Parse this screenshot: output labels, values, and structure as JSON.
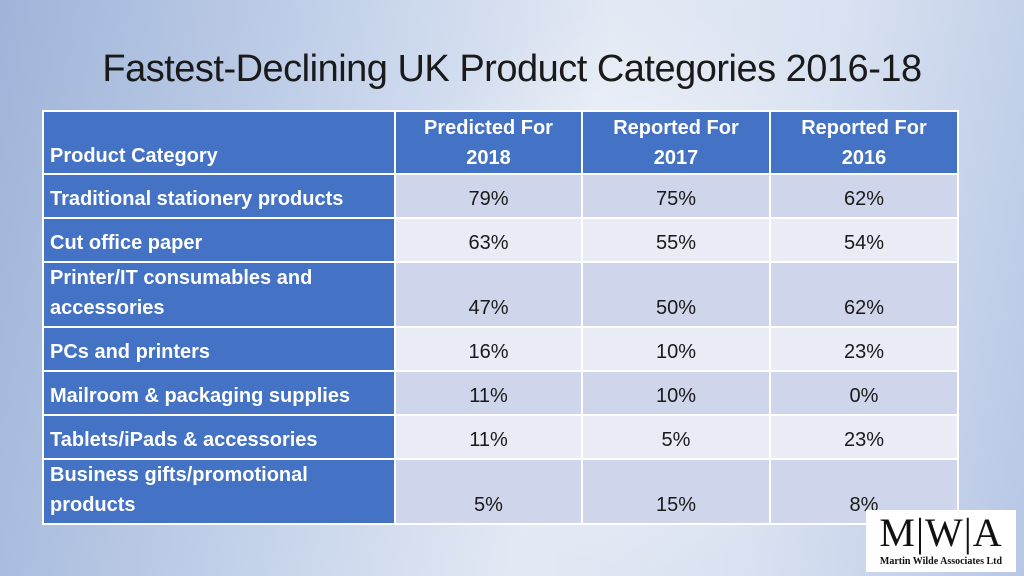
{
  "title": "Fastest-Declining UK Product Categories 2016-18",
  "table": {
    "headers": [
      "Product Category",
      "Predicted For 2018",
      "Reported For 2017",
      "Reported For 2016"
    ],
    "rows": [
      {
        "category": "Traditional stationery products",
        "v2018": "79%",
        "v2017": "75%",
        "v2016": "62%"
      },
      {
        "category": "Cut office paper",
        "v2018": "63%",
        "v2017": "55%",
        "v2016": "54%"
      },
      {
        "category": "Printer/IT consumables and accessories",
        "v2018": "47%",
        "v2017": "50%",
        "v2016": "62%"
      },
      {
        "category": "PCs and printers",
        "v2018": "16%",
        "v2017": "10%",
        "v2016": "23%"
      },
      {
        "category": "Mailroom & packaging supplies",
        "v2018": "11%",
        "v2017": "10%",
        "v2016": "0%"
      },
      {
        "category": "Tablets/iPads & accessories",
        "v2018": "11%",
        "v2017": "5%",
        "v2016": "23%"
      },
      {
        "category": "Business gifts/promotional products",
        "v2018": "5%",
        "v2017": "15%",
        "v2016": "8%"
      }
    ]
  },
  "logo": {
    "mark": "M|W|A",
    "name": "Martin Wilde Associates Ltd"
  }
}
